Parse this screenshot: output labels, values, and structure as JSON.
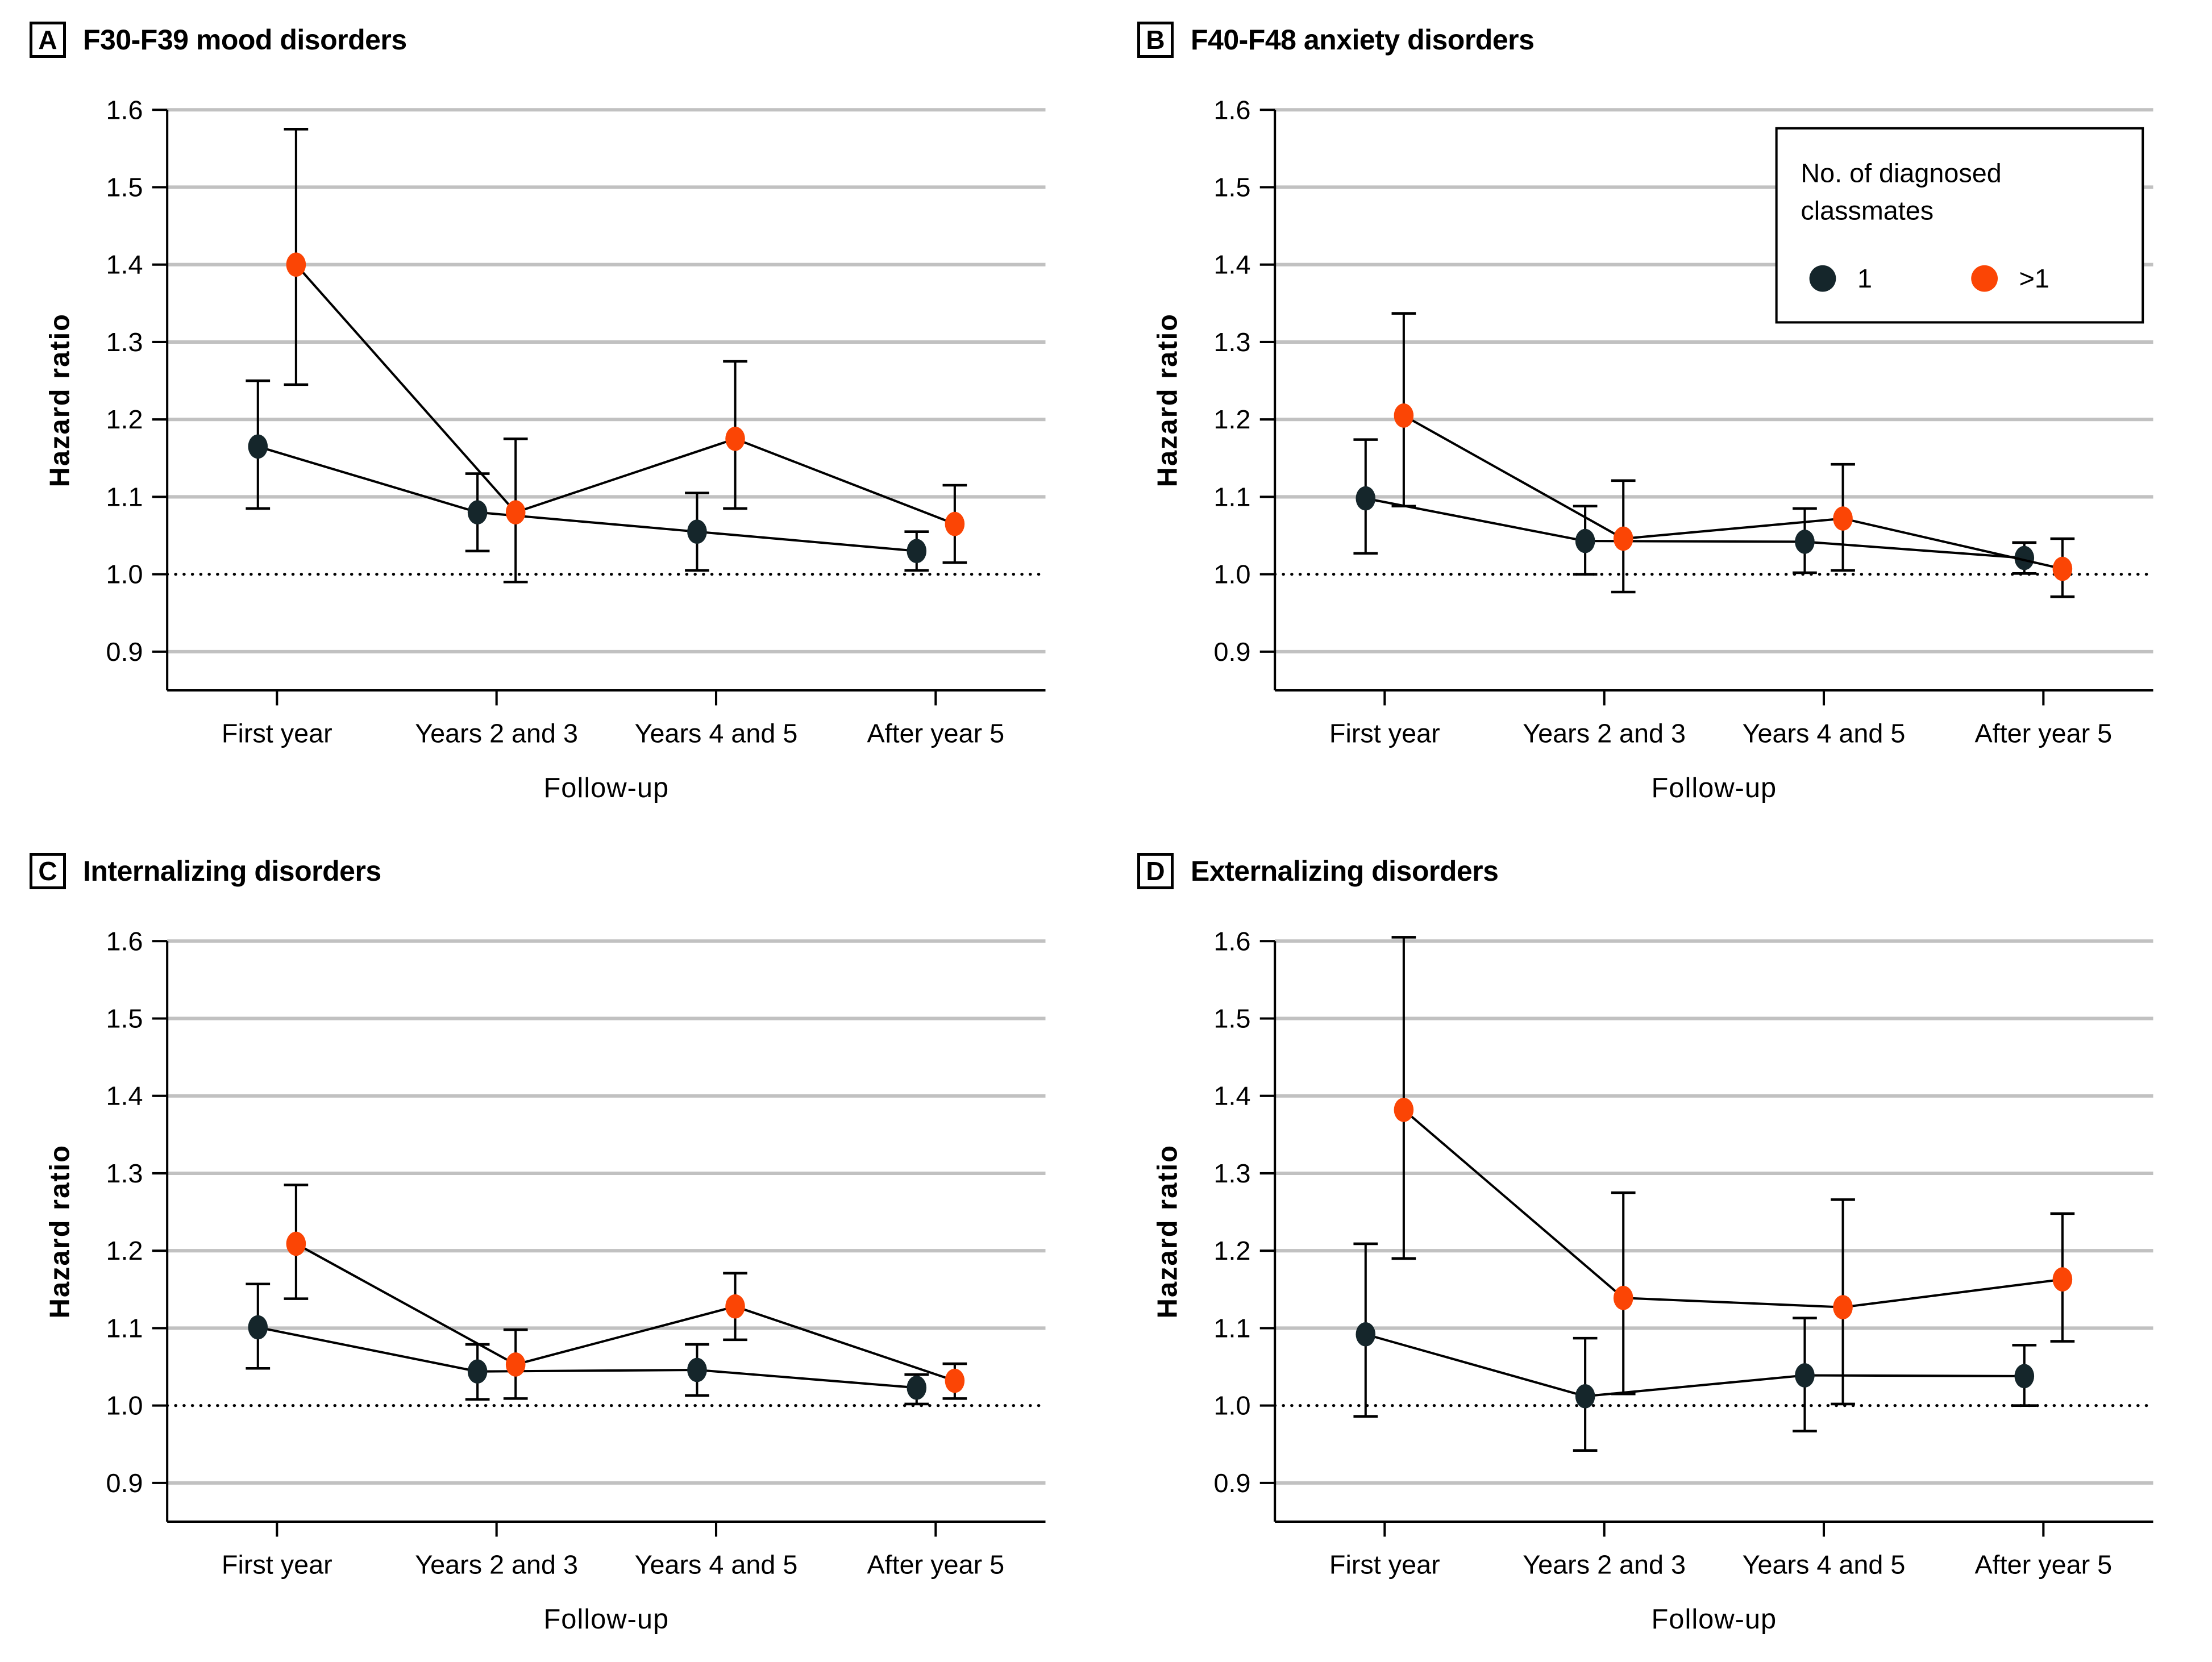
{
  "figure": {
    "background": "#ffffff"
  },
  "colors": {
    "series_1": "#15262B",
    "series_gt1": "#FB4505",
    "gridline": "#C1C1C1",
    "axis": "#000000",
    "reference_line": "#000000"
  },
  "axes": {
    "ylabel": "Hazard ratio",
    "xlabel": "Follow-up",
    "categories": [
      "First year",
      "Years 2 and 3",
      "Years 4 and 5",
      "After year 5"
    ],
    "y_ticks": [
      "1.6",
      "1.5",
      "1.4",
      "1.3",
      "1.2",
      "1.1",
      "1.0",
      "0.9"
    ],
    "y_tick_values": [
      1.6,
      1.5,
      1.4,
      1.3,
      1.2,
      1.1,
      1.0,
      0.9
    ],
    "ylim": [
      0.85,
      1.6
    ],
    "reference_value": 1.0,
    "grid": true
  },
  "legend": {
    "title_line1": "No. of diagnosed",
    "title_line2": "classmates",
    "items": [
      {
        "label": "1",
        "color_key": "series_1"
      },
      {
        "label": ">1",
        "color_key": "series_gt1"
      }
    ]
  },
  "chart_data": [
    {
      "panel_label": "A",
      "title": "F30-F39 mood disorders",
      "type": "scatter",
      "has_legend": false,
      "series": [
        {
          "name": "1",
          "color_key": "series_1",
          "points": [
            {
              "hr": 1.165,
              "lo": 1.085,
              "hi": 1.25
            },
            {
              "hr": 1.08,
              "lo": 1.03,
              "hi": 1.13
            },
            {
              "hr": 1.055,
              "lo": 1.005,
              "hi": 1.105
            },
            {
              "hr": 1.03,
              "lo": 1.005,
              "hi": 1.055
            }
          ]
        },
        {
          "name": ">1",
          "color_key": "series_gt1",
          "points": [
            {
              "hr": 1.4,
              "lo": 1.245,
              "hi": 1.575
            },
            {
              "hr": 1.08,
              "lo": 0.99,
              "hi": 1.175
            },
            {
              "hr": 1.175,
              "lo": 1.085,
              "hi": 1.275
            },
            {
              "hr": 1.065,
              "lo": 1.015,
              "hi": 1.115
            }
          ]
        }
      ]
    },
    {
      "panel_label": "B",
      "title": "F40-F48 anxiety disorders",
      "type": "scatter",
      "has_legend": true,
      "series": [
        {
          "name": "1",
          "color_key": "series_1",
          "points": [
            {
              "hr": 1.098,
              "lo": 1.027,
              "hi": 1.174
            },
            {
              "hr": 1.043,
              "lo": 1.0,
              "hi": 1.088
            },
            {
              "hr": 1.042,
              "lo": 1.002,
              "hi": 1.085
            },
            {
              "hr": 1.021,
              "lo": 1.001,
              "hi": 1.041
            }
          ]
        },
        {
          "name": ">1",
          "color_key": "series_gt1",
          "points": [
            {
              "hr": 1.205,
              "lo": 1.088,
              "hi": 1.337
            },
            {
              "hr": 1.046,
              "lo": 0.977,
              "hi": 1.121
            },
            {
              "hr": 1.072,
              "lo": 1.005,
              "hi": 1.142
            },
            {
              "hr": 1.007,
              "lo": 0.971,
              "hi": 1.046
            }
          ]
        }
      ]
    },
    {
      "panel_label": "C",
      "title": "Internalizing disorders",
      "type": "scatter",
      "has_legend": false,
      "series": [
        {
          "name": "1",
          "color_key": "series_1",
          "points": [
            {
              "hr": 1.101,
              "lo": 1.048,
              "hi": 1.157
            },
            {
              "hr": 1.044,
              "lo": 1.008,
              "hi": 1.079
            },
            {
              "hr": 1.046,
              "lo": 1.013,
              "hi": 1.079
            },
            {
              "hr": 1.023,
              "lo": 1.002,
              "hi": 1.04
            }
          ]
        },
        {
          "name": ">1",
          "color_key": "series_gt1",
          "points": [
            {
              "hr": 1.209,
              "lo": 1.138,
              "hi": 1.285
            },
            {
              "hr": 1.053,
              "lo": 1.009,
              "hi": 1.098
            },
            {
              "hr": 1.128,
              "lo": 1.085,
              "hi": 1.171
            },
            {
              "hr": 1.032,
              "lo": 1.009,
              "hi": 1.054
            }
          ]
        }
      ]
    },
    {
      "panel_label": "D",
      "title": "Externalizing disorders",
      "type": "scatter",
      "has_legend": false,
      "series": [
        {
          "name": "1",
          "color_key": "series_1",
          "points": [
            {
              "hr": 1.092,
              "lo": 0.986,
              "hi": 1.209
            },
            {
              "hr": 1.012,
              "lo": 0.942,
              "hi": 1.087
            },
            {
              "hr": 1.039,
              "lo": 0.967,
              "hi": 1.113
            },
            {
              "hr": 1.038,
              "lo": 1.0,
              "hi": 1.078
            }
          ]
        },
        {
          "name": ">1",
          "color_key": "series_gt1",
          "points": [
            {
              "hr": 1.382,
              "lo": 1.19,
              "hi": 1.605
            },
            {
              "hr": 1.139,
              "lo": 1.015,
              "hi": 1.275
            },
            {
              "hr": 1.127,
              "lo": 1.002,
              "hi": 1.266
            },
            {
              "hr": 1.163,
              "lo": 1.083,
              "hi": 1.248
            }
          ]
        }
      ]
    }
  ]
}
